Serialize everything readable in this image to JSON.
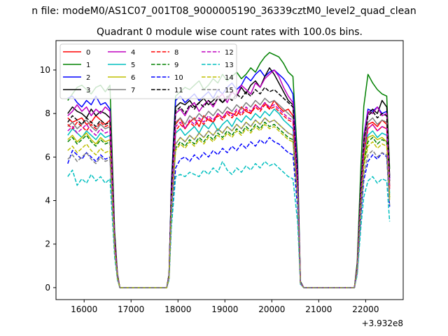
{
  "suptitle": "n file: modeM0/AS1C07_001T08_9000005190_36339cztM0_level2_quad_clean",
  "chart_data": {
    "type": "line",
    "title": "Quadrant 0 module wise count rates with 100.0s bins.",
    "xlabel": "",
    "ylabel": "",
    "offset_label": "+3.932e8",
    "xlim": [
      15400,
      22800
    ],
    "ylim": [
      -0.55,
      11.35
    ],
    "xticks": [
      16000,
      17000,
      18000,
      19000,
      20000,
      21000,
      22000
    ],
    "xtick_labels": [
      "16000",
      "17000",
      "18000",
      "19000",
      "20000",
      "21000",
      "22000"
    ],
    "yticks": [
      0,
      2,
      4,
      6,
      8,
      10
    ],
    "ytick_labels": [
      "0",
      "2",
      "4",
      "6",
      "8",
      "10"
    ],
    "grid": false,
    "legend_position": "top-left",
    "legend_columns": 4,
    "segments": [
      {
        "x_start": 15650,
        "x_end": 16550,
        "step": 100
      },
      {
        "x_start": 17950,
        "x_end": 20450,
        "step": 100
      },
      {
        "x_start": 22050,
        "x_end": 22450,
        "step": 100
      }
    ],
    "edges": {
      "seg1": [
        {
          "x": 16650,
          "frac": 0.28
        },
        {
          "x": 16710,
          "frac": 0.07
        },
        {
          "x": 16760,
          "frac": 0.0
        }
      ],
      "gap1_end": 17760,
      "seg2_rise": [
        {
          "x": 17810,
          "frac": 0.07
        },
        {
          "x": 17860,
          "frac": 0.55
        }
      ],
      "seg2_fall": [
        {
          "x": 20550,
          "frac": 0.6
        },
        {
          "x": 20610,
          "frac": 0.03
        },
        {
          "x": 20680,
          "frac": 0.0
        }
      ],
      "gap2_end": 21760,
      "seg3_rise": [
        {
          "x": 21820,
          "frac": 0.12
        },
        {
          "x": 21900,
          "frac": 0.58
        },
        {
          "x": 21960,
          "frac": 0.85
        }
      ],
      "seg3_end": {
        "x": 22510,
        "frac": 0.62
      }
    },
    "series": [
      {
        "name": "0",
        "color": "#ff0000",
        "dash": "solid",
        "seg1": [
          7.8,
          7.6,
          7.7,
          7.8,
          7.5,
          7.6,
          7.9,
          7.7,
          7.5,
          7.7
        ],
        "seg2": [
          7.5,
          7.8,
          7.3,
          7.6,
          7.8,
          7.4,
          7.9,
          7.7,
          7.6,
          8.0,
          7.8,
          8.1,
          8.0,
          7.9,
          8.3,
          8.1,
          8.0,
          8.4,
          8.2,
          8.5,
          8.2,
          8.6,
          8.3,
          8.1,
          8.2,
          7.9
        ],
        "seg3": [
          7.5,
          7.6,
          7.4,
          7.7,
          7.5
        ]
      },
      {
        "name": "1",
        "color": "#008000",
        "dash": "solid",
        "seg1": [
          8.6,
          8.9,
          9.2,
          9.3,
          9.1,
          8.9,
          9.2,
          9.3,
          9.0,
          9.3
        ],
        "seg2": [
          8.8,
          9.0,
          9.2,
          9.1,
          9.3,
          9.5,
          9.1,
          9.3,
          9.6,
          9.4,
          9.8,
          9.5,
          9.7,
          9.9,
          9.6,
          9.8,
          10.1,
          9.9,
          10.3,
          10.6,
          10.8,
          10.7,
          10.6,
          10.3,
          9.9,
          9.7
        ],
        "seg3": [
          9.8,
          9.4,
          9.1,
          8.9,
          8.8
        ]
      },
      {
        "name": "2",
        "color": "#0000ff",
        "dash": "solid",
        "seg1": [
          8.7,
          8.8,
          8.5,
          8.3,
          8.6,
          8.4,
          8.8,
          8.4,
          8.5,
          8.2
        ],
        "seg2": [
          8.6,
          8.8,
          8.5,
          8.7,
          8.9,
          8.6,
          8.8,
          9.0,
          8.7,
          9.1,
          8.9,
          9.2,
          9.4,
          9.1,
          9.3,
          9.7,
          9.5,
          9.8,
          10.0,
          9.7,
          9.9,
          10.0,
          9.8,
          9.6,
          9.3,
          8.9
        ],
        "seg3": [
          8.2,
          8.1,
          8.3,
          8.0,
          8.1
        ]
      },
      {
        "name": "3",
        "color": "#000000",
        "dash": "solid",
        "seg1": [
          8.0,
          8.3,
          8.1,
          8.0,
          7.8,
          8.2,
          7.9,
          8.1,
          8.0,
          7.8
        ],
        "seg2": [
          8.3,
          8.5,
          8.4,
          8.6,
          8.3,
          8.5,
          8.7,
          8.4,
          8.6,
          8.8,
          8.5,
          8.7,
          9.0,
          8.8,
          9.2,
          8.9,
          9.3,
          9.5,
          9.2,
          9.7,
          10.1,
          9.8,
          9.4,
          9.0,
          8.6,
          8.4
        ],
        "seg3": [
          8.0,
          8.2,
          8.0,
          8.6,
          8.3
        ]
      },
      {
        "name": "4",
        "color": "#bf00bf",
        "dash": "solid",
        "seg1": [
          7.9,
          8.1,
          8.4,
          8.1,
          8.3,
          7.9,
          8.2,
          8.0,
          8.3,
          8.1
        ],
        "seg2": [
          8.0,
          8.2,
          7.9,
          8.3,
          8.5,
          8.1,
          8.4,
          8.6,
          8.3,
          8.7,
          8.9,
          8.5,
          9.0,
          8.8,
          9.3,
          9.1,
          8.9,
          9.4,
          9.2,
          9.6,
          9.8,
          10.0,
          9.7,
          9.2,
          8.8,
          8.5
        ],
        "seg3": [
          8.1,
          8.0,
          8.3,
          7.9,
          8.0
        ]
      },
      {
        "name": "5",
        "color": "#00bfbf",
        "dash": "solid",
        "seg1": [
          7.0,
          7.3,
          7.1,
          6.9,
          7.2,
          7.0,
          6.8,
          7.1,
          6.9,
          7.0
        ],
        "seg2": [
          7.1,
          7.3,
          7.0,
          7.2,
          7.4,
          7.1,
          7.5,
          7.3,
          7.6,
          7.2,
          7.5,
          7.7,
          7.4,
          7.8,
          7.6,
          7.9,
          7.7,
          8.0,
          7.8,
          8.1,
          7.9,
          8.2,
          8.0,
          7.7,
          7.5,
          7.3
        ],
        "seg3": [
          7.0,
          7.2,
          6.9,
          7.1,
          7.0
        ]
      },
      {
        "name": "6",
        "color": "#bfbf00",
        "dash": "solid",
        "seg1": [
          6.8,
          7.0,
          6.7,
          6.9,
          7.1,
          6.8,
          6.6,
          6.9,
          6.7,
          6.8
        ],
        "seg2": [
          6.6,
          6.9,
          6.7,
          7.0,
          6.8,
          7.1,
          6.9,
          7.2,
          7.0,
          7.3,
          7.1,
          7.4,
          7.2,
          7.5,
          7.3,
          7.6,
          7.4,
          7.7,
          7.5,
          7.8,
          7.6,
          7.7,
          7.5,
          7.3,
          7.1,
          7.0
        ],
        "seg3": [
          6.9,
          7.0,
          6.8,
          6.9,
          6.7
        ]
      },
      {
        "name": "7",
        "color": "#808080",
        "dash": "solid",
        "seg1": [
          7.4,
          7.6,
          7.3,
          7.5,
          7.7,
          7.4,
          7.2,
          7.5,
          7.3,
          7.4
        ],
        "seg2": [
          7.6,
          7.8,
          7.5,
          7.9,
          7.7,
          8.0,
          7.8,
          8.1,
          7.9,
          8.2,
          8.0,
          8.3,
          8.1,
          8.4,
          8.2,
          8.5,
          8.3,
          8.6,
          8.4,
          8.7,
          8.5,
          8.6,
          8.4,
          8.2,
          8.0,
          7.8
        ],
        "seg3": [
          7.6,
          7.8,
          7.5,
          7.7,
          7.6
        ]
      },
      {
        "name": "8",
        "color": "#ff0000",
        "dash": "dashed",
        "seg1": [
          7.5,
          7.3,
          7.6,
          7.4,
          7.2,
          7.5,
          7.3,
          7.6,
          7.4,
          7.5
        ],
        "seg2": [
          7.2,
          7.5,
          7.3,
          7.6,
          7.4,
          7.7,
          7.5,
          7.8,
          7.6,
          7.9,
          7.7,
          8.0,
          7.8,
          8.1,
          7.9,
          8.2,
          8.0,
          8.3,
          8.1,
          8.4,
          8.2,
          8.3,
          8.1,
          7.9,
          7.7,
          7.6
        ],
        "seg3": [
          7.3,
          7.5,
          7.2,
          7.4,
          7.3
        ]
      },
      {
        "name": "9",
        "color": "#008000",
        "dash": "dashed",
        "seg1": [
          6.7,
          6.9,
          6.6,
          6.8,
          7.0,
          6.7,
          6.5,
          6.8,
          6.6,
          6.7
        ],
        "seg2": [
          6.4,
          6.7,
          6.5,
          6.8,
          6.6,
          6.9,
          6.7,
          7.0,
          6.8,
          7.1,
          6.9,
          7.2,
          7.0,
          7.3,
          7.1,
          7.4,
          7.2,
          7.5,
          7.3,
          7.6,
          7.4,
          7.5,
          7.3,
          7.1,
          6.9,
          6.8
        ],
        "seg3": [
          6.7,
          6.9,
          6.6,
          6.8,
          6.7
        ]
      },
      {
        "name": "10",
        "color": "#0000ff",
        "dash": "dashed",
        "seg1": [
          5.7,
          6.3,
          6.1,
          5.9,
          6.2,
          6.0,
          5.8,
          6.1,
          5.9,
          6.0
        ],
        "seg2": [
          5.5,
          5.9,
          6.0,
          5.8,
          6.1,
          5.9,
          6.2,
          6.0,
          6.3,
          6.1,
          6.4,
          6.2,
          6.5,
          6.3,
          6.6,
          6.4,
          6.7,
          6.5,
          6.8,
          6.6,
          6.9,
          6.7,
          6.6,
          6.4,
          6.2,
          6.1
        ],
        "seg3": [
          5.8,
          6.1,
          5.9,
          6.2,
          6.0
        ]
      },
      {
        "name": "11",
        "color": "#000000",
        "dash": "dashed",
        "seg1": [
          7.6,
          7.9,
          7.7,
          7.5,
          7.8,
          7.6,
          7.4,
          7.7,
          7.5,
          7.6
        ],
        "seg2": [
          8.1,
          8.3,
          8.0,
          8.4,
          8.2,
          8.5,
          8.3,
          8.6,
          8.4,
          8.7,
          8.5,
          8.8,
          8.6,
          8.9,
          8.7,
          9.0,
          8.8,
          9.1,
          8.9,
          9.2,
          9.0,
          9.1,
          8.9,
          8.7,
          8.5,
          8.3
        ],
        "seg3": [
          7.9,
          8.1,
          7.8,
          8.0,
          7.9
        ]
      },
      {
        "name": "12",
        "color": "#bf00bf",
        "dash": "dashed",
        "seg1": [
          7.2,
          7.4,
          7.1,
          7.3,
          7.5,
          7.2,
          7.0,
          7.3,
          7.1,
          7.2
        ],
        "seg2": [
          7.4,
          7.6,
          7.3,
          7.7,
          7.5,
          7.8,
          7.6,
          7.9,
          7.7,
          8.0,
          7.8,
          8.1,
          7.9,
          8.2,
          8.0,
          8.3,
          8.1,
          8.4,
          8.2,
          8.5,
          8.3,
          8.4,
          8.2,
          8.0,
          7.8,
          7.7
        ],
        "seg3": [
          7.3,
          7.5,
          7.2,
          7.4,
          7.3
        ]
      },
      {
        "name": "13",
        "color": "#00bfbf",
        "dash": "dashed",
        "seg1": [
          5.1,
          5.4,
          4.7,
          5.0,
          4.8,
          5.2,
          4.9,
          5.1,
          4.8,
          5.0
        ],
        "seg2": [
          5.1,
          5.2,
          5.1,
          5.3,
          5.2,
          5.1,
          5.4,
          5.2,
          5.5,
          5.3,
          5.8,
          5.4,
          5.2,
          5.5,
          5.3,
          5.6,
          5.4,
          5.7,
          5.5,
          5.8,
          5.6,
          5.7,
          5.5,
          5.3,
          5.1,
          5.0
        ],
        "seg3": [
          4.9,
          5.1,
          4.8,
          5.0,
          4.9
        ]
      },
      {
        "name": "14",
        "color": "#bfbf00",
        "dash": "dashed",
        "seg1": [
          6.3,
          6.5,
          6.2,
          6.4,
          6.6,
          6.3,
          6.1,
          6.4,
          6.2,
          6.3
        ],
        "seg2": [
          6.3,
          6.6,
          6.4,
          6.7,
          6.5,
          6.8,
          6.6,
          6.9,
          6.7,
          7.0,
          6.8,
          7.1,
          6.9,
          7.2,
          7.0,
          7.3,
          7.1,
          7.4,
          7.2,
          7.5,
          7.3,
          7.4,
          7.2,
          7.0,
          6.8,
          6.7
        ],
        "seg3": [
          6.5,
          6.7,
          6.4,
          6.6,
          6.5
        ]
      },
      {
        "name": "15",
        "color": "#808080",
        "dash": "dashed",
        "seg1": [
          5.9,
          6.1,
          5.8,
          6.0,
          6.2,
          5.9,
          5.7,
          6.0,
          5.8,
          5.9
        ],
        "seg2": [
          6.6,
          6.9,
          6.7,
          7.0,
          6.8,
          7.1,
          6.9,
          7.2,
          7.0,
          7.3,
          7.1,
          7.4,
          7.2,
          7.5,
          7.3,
          7.6,
          7.4,
          7.7,
          7.5,
          7.8,
          7.6,
          7.7,
          7.5,
          7.3,
          7.1,
          7.0
        ],
        "seg3": [
          6.1,
          6.3,
          6.0,
          6.2,
          6.1
        ]
      }
    ]
  }
}
